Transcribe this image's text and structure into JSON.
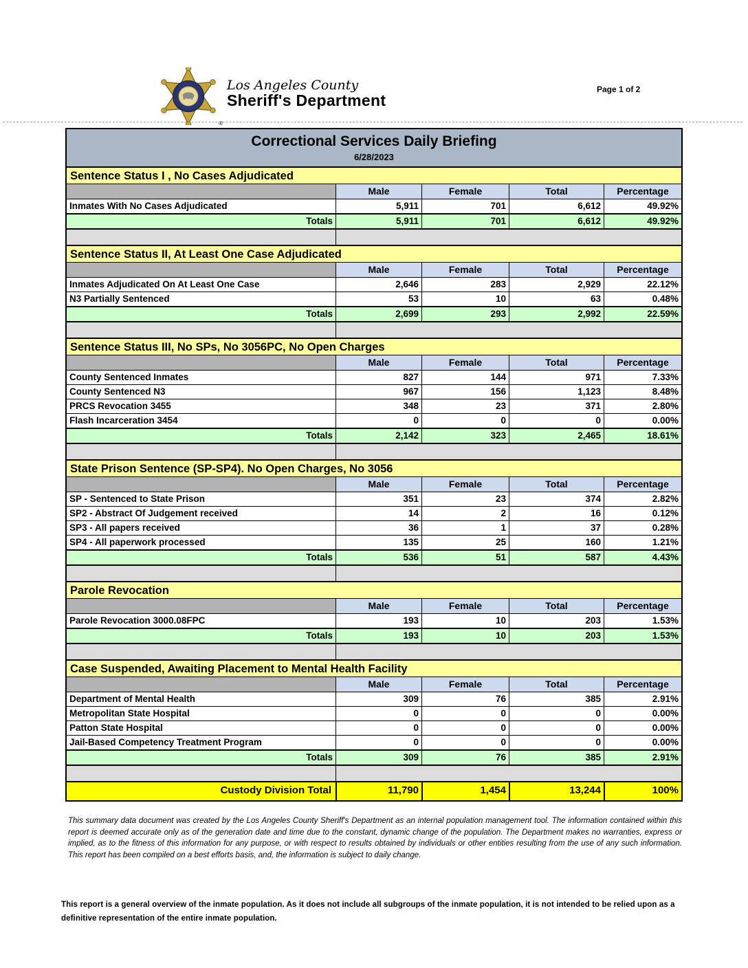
{
  "page": {
    "page_label": "Page 1 of 2"
  },
  "logo": {
    "org_line1": "Los Angeles County",
    "org_line2": "Sheriff's Department",
    "badge_icon": "sheriff-star-badge"
  },
  "report": {
    "title": "Correctional Services Daily Briefing",
    "date": "6/28/2023"
  },
  "columns": [
    "Male",
    "Female",
    "Total",
    "Percentage"
  ],
  "totals_label": "Totals",
  "sections": [
    {
      "header": "Sentence Status I , No Cases Adjudicated",
      "rows": [
        {
          "label": "Inmates With No Cases Adjudicated",
          "male": "5,911",
          "female": "701",
          "total": "6,612",
          "pct": "49.92%"
        }
      ],
      "totals": {
        "male": "5,911",
        "female": "701",
        "total": "6,612",
        "pct": "49.92%"
      }
    },
    {
      "header": "Sentence Status II, At Least One Case Adjudicated",
      "rows": [
        {
          "label": "Inmates Adjudicated On At Least One Case",
          "male": "2,646",
          "female": "283",
          "total": "2,929",
          "pct": "22.12%"
        },
        {
          "label": "N3 Partially Sentenced",
          "male": "53",
          "female": "10",
          "total": "63",
          "pct": "0.48%"
        }
      ],
      "totals": {
        "male": "2,699",
        "female": "293",
        "total": "2,992",
        "pct": "22.59%"
      }
    },
    {
      "header": "Sentence Status III, No SPs, No 3056PC, No Open Charges",
      "rows": [
        {
          "label": "County Sentenced Inmates",
          "male": "827",
          "female": "144",
          "total": "971",
          "pct": "7.33%"
        },
        {
          "label": "County Sentenced N3",
          "male": "967",
          "female": "156",
          "total": "1,123",
          "pct": "8.48%"
        },
        {
          "label": "PRCS Revocation 3455",
          "male": "348",
          "female": "23",
          "total": "371",
          "pct": "2.80%"
        },
        {
          "label": "Flash Incarceration 3454",
          "male": "0",
          "female": "0",
          "total": "0",
          "pct": "0.00%"
        }
      ],
      "totals": {
        "male": "2,142",
        "female": "323",
        "total": "2,465",
        "pct": "18.61%"
      }
    },
    {
      "header": "State Prison Sentence (SP-SP4). No Open Charges, No 3056",
      "rows": [
        {
          "label": "SP - Sentenced to State Prison",
          "male": "351",
          "female": "23",
          "total": "374",
          "pct": "2.82%"
        },
        {
          "label": "SP2 - Abstract Of Judgement received",
          "male": "14",
          "female": "2",
          "total": "16",
          "pct": "0.12%"
        },
        {
          "label": "SP3 - All papers received",
          "male": "36",
          "female": "1",
          "total": "37",
          "pct": "0.28%"
        },
        {
          "label": "SP4 - All paperwork processed",
          "male": "135",
          "female": "25",
          "total": "160",
          "pct": "1.21%"
        }
      ],
      "totals": {
        "male": "536",
        "female": "51",
        "total": "587",
        "pct": "4.43%"
      }
    },
    {
      "header": "Parole Revocation",
      "rows": [
        {
          "label": "Parole Revocation 3000.08FPC",
          "male": "193",
          "female": "10",
          "total": "203",
          "pct": "1.53%"
        }
      ],
      "totals": {
        "male": "193",
        "female": "10",
        "total": "203",
        "pct": "1.53%"
      }
    },
    {
      "header": "Case Suspended, Awaiting Placement to Mental Health Facility",
      "rows": [
        {
          "label": "Department of Mental Health",
          "male": "309",
          "female": "76",
          "total": "385",
          "pct": "2.91%"
        },
        {
          "label": "Metropolitan State Hospital",
          "male": "0",
          "female": "0",
          "total": "0",
          "pct": "0.00%"
        },
        {
          "label": "Patton State Hospital",
          "male": "0",
          "female": "0",
          "total": "0",
          "pct": "0.00%"
        },
        {
          "label": "Jail-Based Competency Treatment Program",
          "male": "0",
          "female": "0",
          "total": "0",
          "pct": "0.00%"
        }
      ],
      "totals": {
        "male": "309",
        "female": "76",
        "total": "385",
        "pct": "2.91%"
      }
    }
  ],
  "grand_total": {
    "label": "Custody Division Total",
    "male": "11,790",
    "female": "1,454",
    "total": "13,244",
    "pct": "100%"
  },
  "footer": {
    "disclaimer": "This summary data document was created by the Los Angeles County Sheriff's Department as an internal population management tool.  The information contained within this report is deemed accurate only as of the generation date and time due to the constant, dynamic change of the population.  The Department makes no warranties, express or implied, as to the fitness of this information for any purpose, or with respect to results obtained by individuals or other entities resulting from the use of any such information.  This report has been compiled on a best efforts basis, and, the information is subject to daily change.",
    "note": "This report is a general overview of the inmate population.  As it does not include all subgroups of the inmate population, it is not intended to be relied upon as a definitive representation of the entire inmate population."
  },
  "colors": {
    "title_bar_bg": "#A9B7C6",
    "section_header_bg": "#FFFF9E",
    "column_header_bg": "#CDD9EC",
    "column_spacer_bg": "#B3B3B3",
    "totals_row_bg": "#CCFFCC",
    "gap_bg": "#DCDCDC",
    "grand_total_bg": "#FFFF00",
    "badge_gold": "#C9A63C",
    "badge_ring_navy": "#2A3570"
  }
}
